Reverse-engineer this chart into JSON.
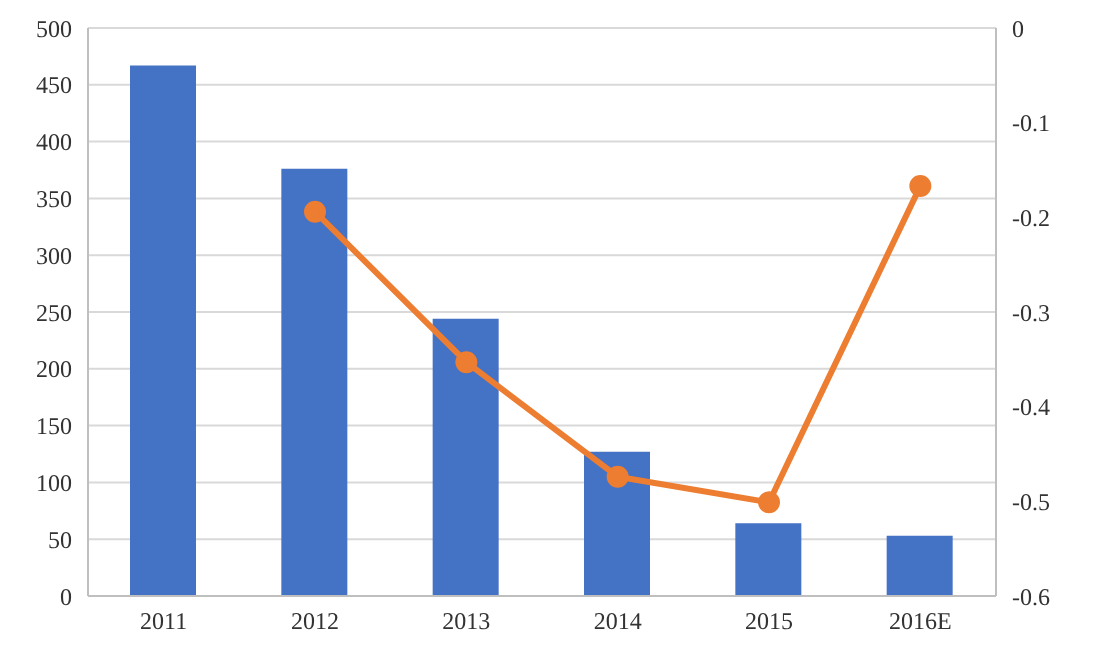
{
  "chart_data": {
    "type": "bar",
    "categories": [
      "2011",
      "2012",
      "2013",
      "2014",
      "2015",
      "2016E"
    ],
    "series": [
      {
        "color": "#4472c4",
        "values": [
          467,
          376,
          244,
          127,
          64,
          53
        ]
      },
      {
        "type": "line",
        "axis": "y2",
        "color": "#ed7d31",
        "values": [
          null,
          -0.194,
          -0.353,
          -0.474,
          -0.501,
          -0.167
        ]
      }
    ],
    "ylim": [
      0,
      500
    ],
    "yticks": [
      0,
      50,
      100,
      150,
      200,
      250,
      300,
      350,
      400,
      450,
      500
    ],
    "y2lim": [
      -0.6,
      0
    ],
    "y2ticks": [
      -0.6,
      -0.5,
      -0.4,
      -0.3,
      -0.2,
      -0.1,
      0
    ],
    "grid": "y",
    "marker": "circle",
    "legend": false
  }
}
